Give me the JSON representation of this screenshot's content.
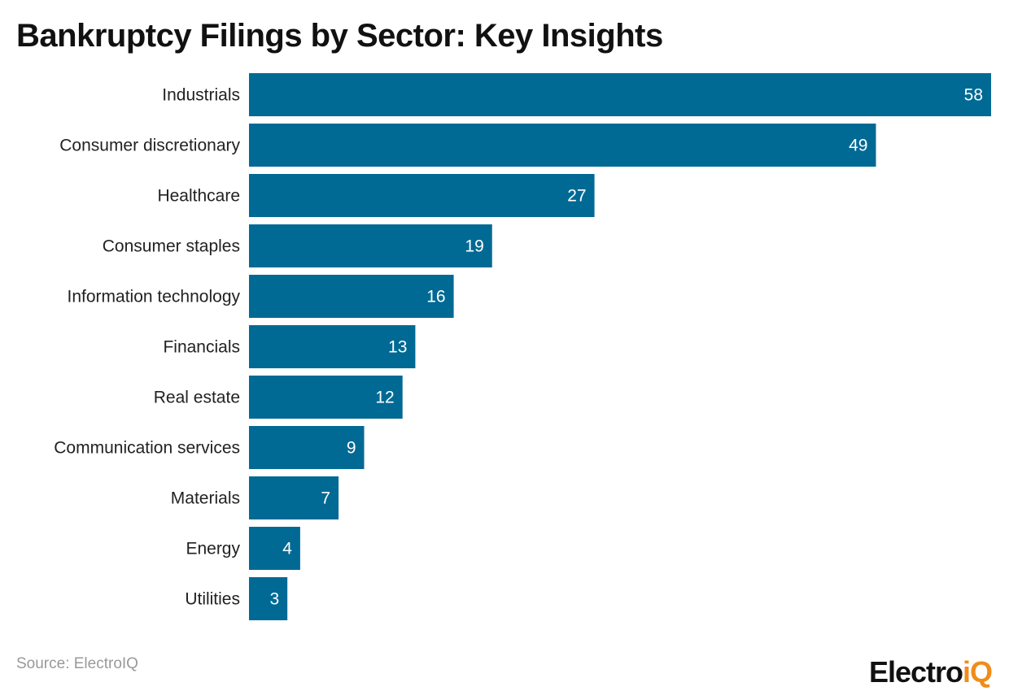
{
  "chart_data": {
    "type": "bar",
    "orientation": "horizontal",
    "title": "Bankruptcy Filings by Sector: Key Insights",
    "categories": [
      "Industrials",
      "Consumer discretionary",
      "Healthcare",
      "Consumer staples",
      "Information technology",
      "Financials",
      "Real estate",
      "Communication services",
      "Materials",
      "Energy",
      "Utilities"
    ],
    "values": [
      58,
      49,
      27,
      19,
      16,
      13,
      12,
      9,
      7,
      4,
      3
    ],
    "xlim": [
      0,
      58
    ],
    "grid": false,
    "bar_color": "#006a94",
    "label_color": "#ffffff"
  },
  "source": "Source: ElectroIQ",
  "logo": {
    "part1": "Electro",
    "part2": "iQ",
    "color1": "#111111",
    "color2": "#f08c1a"
  }
}
